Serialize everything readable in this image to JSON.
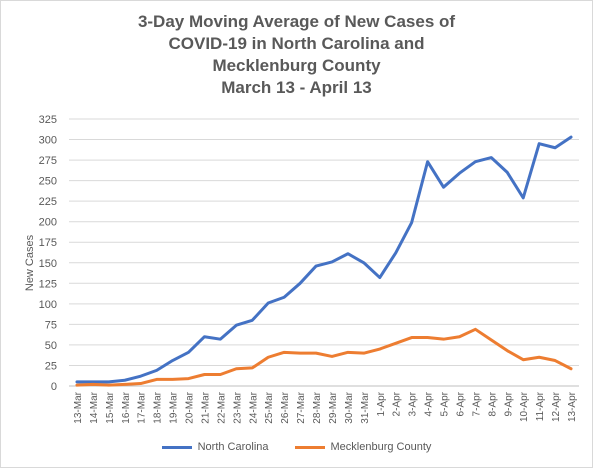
{
  "title_lines": [
    "3-Day Moving Average of New Cases of",
    "COVID-19 in North Carolina and",
    "Mecklenburg County",
    "March 13 - April 13"
  ],
  "colors": {
    "north_carolina": "#4472C4",
    "mecklenburg": "#ED7D31",
    "grid": "#d9d9d9",
    "text": "#595959"
  },
  "chart_data": {
    "type": "line",
    "title": "3-Day Moving Average of New Cases of COVID-19 in North Carolina and Mecklenburg County March 13 - April 13",
    "xlabel": "",
    "ylabel": "New Cases",
    "ylim": [
      0,
      325
    ],
    "yticks": [
      0,
      25,
      50,
      75,
      100,
      125,
      150,
      175,
      200,
      225,
      250,
      275,
      300,
      325
    ],
    "grid": true,
    "legend_position": "bottom",
    "categories": [
      "13-Mar",
      "14-Mar",
      "15-Mar",
      "16-Mar",
      "17-Mar",
      "18-Mar",
      "19-Mar",
      "20-Mar",
      "21-Mar",
      "22-Mar",
      "23-Mar",
      "24-Mar",
      "25-Mar",
      "26-Mar",
      "27-Mar",
      "28-Mar",
      "29-Mar",
      "30-Mar",
      "31-Mar",
      "1-Apr",
      "2-Apr",
      "3-Apr",
      "4-Apr",
      "5-Apr",
      "6-Apr",
      "7-Apr",
      "8-Apr",
      "9-Apr",
      "10-Apr",
      "11-Apr",
      "12-Apr",
      "13-Apr"
    ],
    "series": [
      {
        "name": "North Carolina",
        "values": [
          5,
          5,
          5,
          7,
          12,
          19,
          31,
          41,
          60,
          57,
          74,
          80,
          101,
          108,
          125,
          146,
          151,
          161,
          150,
          132,
          162,
          199,
          273,
          242,
          259,
          273,
          278,
          260,
          229,
          295,
          290,
          303
        ]
      },
      {
        "name": "Mecklenburg County",
        "values": [
          1,
          2,
          1,
          2,
          3,
          8,
          8,
          9,
          14,
          14,
          21,
          22,
          35,
          41,
          40,
          40,
          36,
          41,
          40,
          45,
          52,
          59,
          59,
          57,
          60,
          69,
          56,
          43,
          32,
          35,
          31,
          21
        ]
      }
    ]
  }
}
